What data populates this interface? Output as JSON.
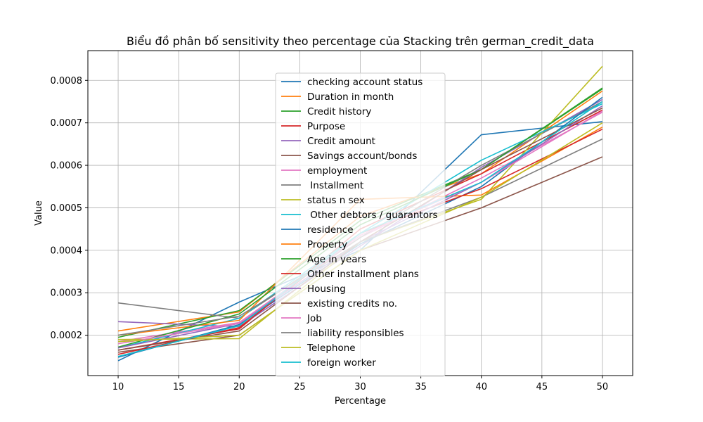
{
  "chart_data": {
    "type": "line",
    "title": "Biểu đồ phân bố sensitivity theo percentage của Stacking trên german_credit_data",
    "xlabel": "Percentage",
    "ylabel": "Value",
    "xlim": [
      7.5,
      52.5
    ],
    "ylim": [
      0.000105,
      0.00087
    ],
    "x_ticks": [
      10,
      15,
      20,
      25,
      30,
      35,
      40,
      45,
      50
    ],
    "y_ticks": [
      0.0002,
      0.0003,
      0.0004,
      0.0005,
      0.0006,
      0.0007,
      0.0008
    ],
    "y_tick_labels": [
      "0.0002",
      "0.0003",
      "0.0004",
      "0.0005",
      "0.0006",
      "0.0007",
      "0.0008"
    ],
    "grid": true,
    "legend_position": "center",
    "x": [
      10,
      20,
      30,
      40,
      50
    ],
    "series": [
      {
        "name": "checking account status",
        "color": "#1f77b4",
        "values": [
          0.00014,
          0.000278,
          0.0004,
          0.000672,
          0.000703
        ]
      },
      {
        "name": "Duration in month",
        "color": "#ff7f0e",
        "values": [
          0.00021,
          0.000255,
          0.00048,
          0.00058,
          0.000775
        ]
      },
      {
        "name": "Credit history",
        "color": "#2ca02c",
        "values": [
          0.000195,
          0.000258,
          0.00047,
          0.00059,
          0.000782
        ]
      },
      {
        "name": "Purpose",
        "color": "#d62728",
        "values": [
          0.000165,
          0.000215,
          0.00045,
          0.00058,
          0.00073
        ]
      },
      {
        "name": "Credit amount",
        "color": "#9467bd",
        "values": [
          0.000232,
          0.00022,
          0.00041,
          0.000595,
          0.000755
        ]
      },
      {
        "name": "Savings account/bonds",
        "color": "#8c564b",
        "values": [
          0.00016,
          0.0002,
          0.0004,
          0.0005,
          0.00062
        ]
      },
      {
        "name": "employment",
        "color": "#e377c2",
        "values": [
          0.000185,
          0.00023,
          0.00043,
          0.00057,
          0.000725
        ]
      },
      {
        "name": " Installment",
        "color": "#7f7f7f",
        "values": [
          0.000276,
          0.00024,
          0.00043,
          0.0006,
          0.00075
        ]
      },
      {
        "name": "status n sex",
        "color": "#bcbd22",
        "values": [
          0.00019,
          0.000192,
          0.00042,
          0.00052,
          0.000833
        ]
      },
      {
        "name": " Other debtors / guarantors",
        "color": "#17becf",
        "values": [
          0.00017,
          0.00024,
          0.00044,
          0.000612,
          0.000745
        ]
      },
      {
        "name": "residence",
        "color": "#1f77b4",
        "values": [
          0.000148,
          0.000225,
          0.000415,
          0.00055,
          0.00076
        ]
      },
      {
        "name": "Property",
        "color": "#ff7f0e",
        "values": [
          0.0002,
          0.000235,
          0.00052,
          0.00053,
          0.00069
        ]
      },
      {
        "name": "Age in years",
        "color": "#2ca02c",
        "values": [
          0.000172,
          0.00025,
          0.00046,
          0.00059,
          0.00078
        ]
      },
      {
        "name": "Other installment plans",
        "color": "#d62728",
        "values": [
          0.000155,
          0.000218,
          0.00044,
          0.000545,
          0.000685
        ]
      },
      {
        "name": "Housing",
        "color": "#9467bd",
        "values": [
          0.00017,
          0.000228,
          0.00042,
          0.00056,
          0.00074
        ]
      },
      {
        "name": "existing credits no.",
        "color": "#8c564b",
        "values": [
          0.000165,
          0.00021,
          0.00042,
          0.00059,
          0.000735
        ]
      },
      {
        "name": "Job",
        "color": "#e377c2",
        "values": [
          0.00018,
          0.000228,
          0.000435,
          0.00056,
          0.000728
        ]
      },
      {
        "name": "liability responsibles",
        "color": "#7f7f7f",
        "values": [
          0.0002,
          0.000245,
          0.00042,
          0.000525,
          0.000662
        ]
      },
      {
        "name": "Telephone",
        "color": "#bcbd22",
        "values": [
          0.000185,
          0.0002,
          0.0004,
          0.000525,
          0.0007
        ]
      },
      {
        "name": "foreign worker",
        "color": "#17becf",
        "values": [
          0.00015,
          0.000222,
          0.00044,
          0.00056,
          0.00075
        ]
      }
    ]
  }
}
